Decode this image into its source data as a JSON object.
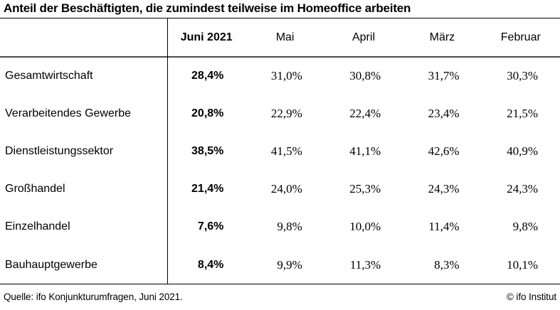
{
  "chart_data": {
    "type": "table",
    "title": "Anteil der Beschäftigten, die zumindest teilweise im Homeoffice arbeiten",
    "columns": [
      "Juni 2021",
      "Mai",
      "April",
      "März",
      "Februar"
    ],
    "highlight_column": "Juni 2021",
    "unit": "%",
    "rows": [
      {
        "label": "Gesamtwirtschaft",
        "values": [
          "28,4%",
          "31,0%",
          "30,8%",
          "31,7%",
          "30,3%"
        ],
        "values_numeric": [
          28.4,
          31.0,
          30.8,
          31.7,
          30.3
        ]
      },
      {
        "label": "Verarbeitendes Gewerbe",
        "values": [
          "20,8%",
          "22,9%",
          "22,4%",
          "23,4%",
          "21,5%"
        ],
        "values_numeric": [
          20.8,
          22.9,
          22.4,
          23.4,
          21.5
        ]
      },
      {
        "label": "Dienstleistungssektor",
        "values": [
          "38,5%",
          "41,5%",
          "41,1%",
          "42,6%",
          "40,9%"
        ],
        "values_numeric": [
          38.5,
          41.5,
          41.1,
          42.6,
          40.9
        ]
      },
      {
        "label": "Großhandel",
        "values": [
          "21,4%",
          "24,0%",
          "25,3%",
          "24,3%",
          "24,3%"
        ],
        "values_numeric": [
          21.4,
          24.0,
          25.3,
          24.3,
          24.3
        ]
      },
      {
        "label": "Einzelhandel",
        "values": [
          "7,6%",
          "9,8%",
          "10,0%",
          "11,4%",
          "9,8%"
        ],
        "values_numeric": [
          7.6,
          9.8,
          10.0,
          11.4,
          9.8
        ]
      },
      {
        "label": "Bauhauptgewerbe",
        "values": [
          "8,4%",
          "9,9%",
          "11,3%",
          "8,3%",
          "10,1%"
        ],
        "values_numeric": [
          8.4,
          9.9,
          11.3,
          8.3,
          10.1
        ]
      }
    ],
    "source": "Quelle: ifo Konjunkturumfragen, Juni 2021.",
    "copyright": "© ifo Institut"
  },
  "colors": {
    "background": "#ffffff",
    "text": "#000000",
    "header_rule": "#4a4a4a",
    "rule": "#000000"
  }
}
